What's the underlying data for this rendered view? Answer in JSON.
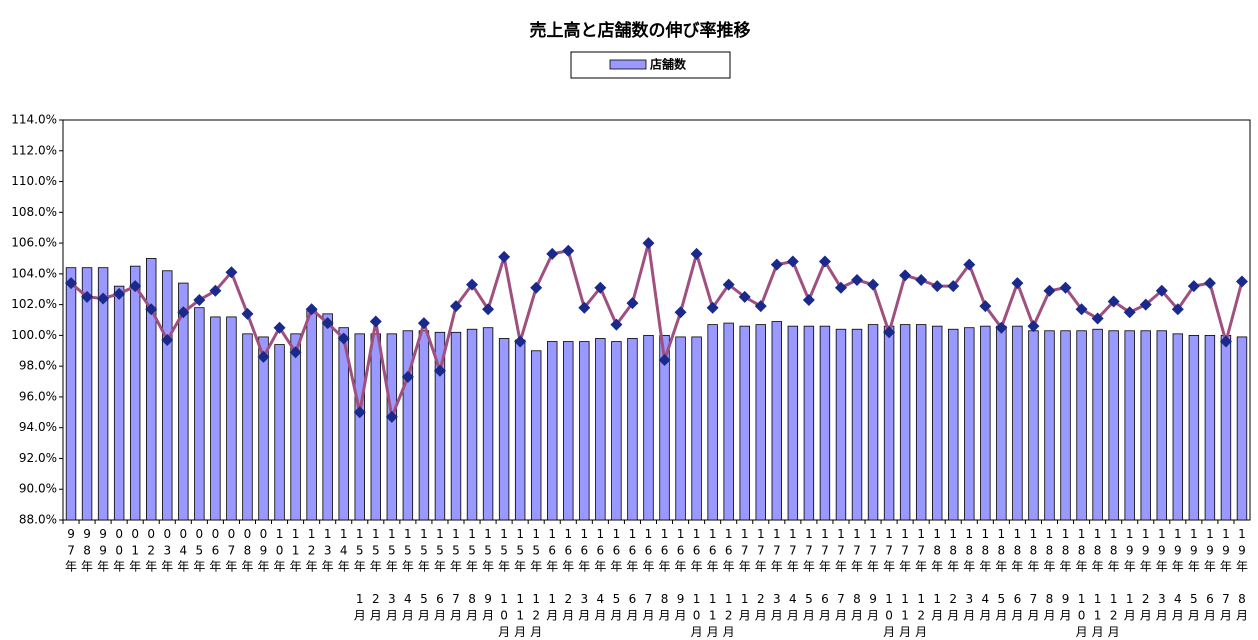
{
  "chart_data": {
    "type": "bar_line",
    "title": "売上高と店舗数の伸び率推移",
    "categories": [
      "97年",
      "98年",
      "99年",
      "00年",
      "01年",
      "02年",
      "03年",
      "04年",
      "05年",
      "06年",
      "07年",
      "08年",
      "09年",
      "10年",
      "11年",
      "12年",
      "13年",
      "14年",
      "15年1月",
      "15年2月",
      "15年3月",
      "15年4月",
      "15年5月",
      "15年6月",
      "15年7月",
      "15年8月",
      "15年9月",
      "15年10月",
      "15年11月",
      "15年12月",
      "16年1月",
      "16年2月",
      "16年3月",
      "16年4月",
      "16年5月",
      "16年6月",
      "16年7月",
      "16年8月",
      "16年9月",
      "16年10月",
      "16年11月",
      "16年12月",
      "17年1月",
      "17年2月",
      "17年3月",
      "17年4月",
      "17年5月",
      "17年6月",
      "17年7月",
      "17年8月",
      "17年9月",
      "17年10月",
      "17年11月",
      "17年12月",
      "18年1月",
      "18年2月",
      "18年3月",
      "18年4月",
      "18年5月",
      "18年6月",
      "18年7月",
      "18年8月",
      "18年9月",
      "18年10月",
      "18年11月",
      "18年12月",
      "19年1月",
      "19年2月",
      "19年3月",
      "19年4月",
      "19年5月",
      "19年6月",
      "19年7月",
      "19年8月"
    ],
    "series": [
      {
        "name": "店舗数",
        "type": "bar",
        "color": "#9999ff",
        "values": [
          104.4,
          104.4,
          104.4,
          103.2,
          104.5,
          105.0,
          104.2,
          103.4,
          101.8,
          101.2,
          101.2,
          100.1,
          99.9,
          99.4,
          100.1,
          101.6,
          101.4,
          100.5,
          100.1,
          100.1,
          100.1,
          100.3,
          100.3,
          100.2,
          100.2,
          100.4,
          100.5,
          99.8,
          99.7,
          99.0,
          99.6,
          99.6,
          99.6,
          99.8,
          99.6,
          99.8,
          100.0,
          100.0,
          99.9,
          99.9,
          100.7,
          100.8,
          100.6,
          100.7,
          100.9,
          100.6,
          100.6,
          100.6,
          100.4,
          100.4,
          100.7,
          100.6,
          100.7,
          100.7,
          100.6,
          100.4,
          100.5,
          100.6,
          100.6,
          100.6,
          100.3,
          100.3,
          100.3,
          100.3,
          100.4,
          100.3,
          100.3,
          100.3,
          100.3,
          100.1,
          100.0,
          100.0,
          100.0,
          99.9
        ]
      },
      {
        "type": "line",
        "color": "#a0507f",
        "marker_color": "#1a2a8c",
        "values": [
          103.4,
          102.5,
          102.4,
          102.7,
          103.2,
          101.7,
          99.7,
          101.5,
          102.3,
          102.9,
          104.1,
          101.4,
          98.6,
          100.5,
          98.9,
          101.7,
          100.8,
          99.8,
          95.0,
          100.9,
          94.7,
          97.3,
          100.8,
          97.7,
          101.9,
          103.3,
          101.7,
          105.1,
          99.6,
          103.1,
          105.3,
          105.5,
          101.8,
          103.1,
          100.7,
          102.1,
          106.0,
          98.4,
          101.5,
          105.3,
          101.8,
          103.3,
          102.5,
          101.9,
          104.6,
          104.8,
          102.3,
          104.8,
          103.1,
          103.6,
          103.3,
          100.2,
          103.9,
          103.6,
          103.2,
          103.2,
          104.6,
          101.9,
          100.5,
          103.4,
          100.6,
          102.9,
          103.1,
          101.7,
          101.1,
          102.2,
          101.5,
          102.0,
          102.9,
          101.7,
          103.2,
          103.4,
          99.6,
          103.5
        ]
      }
    ],
    "ylim": [
      88,
      114
    ],
    "yticks": [
      {
        "value": 88,
        "label": "88.0%"
      },
      {
        "value": 90,
        "label": "90.0%"
      },
      {
        "value": 92,
        "label": "92.0%"
      },
      {
        "value": 94,
        "label": "94.0%"
      },
      {
        "value": 96,
        "label": "96.0%"
      },
      {
        "value": 98,
        "label": "98.0%"
      },
      {
        "value": 100,
        "label": "100.0%"
      },
      {
        "value": 102,
        "label": "102.0%"
      },
      {
        "value": 104,
        "label": "104.0%"
      },
      {
        "value": 106,
        "label": "106.0%"
      },
      {
        "value": 108,
        "label": "108.0%"
      },
      {
        "value": 110,
        "label": "110.0%"
      },
      {
        "value": 112,
        "label": "112.0%"
      },
      {
        "value": 114,
        "label": "114.0%"
      }
    ],
    "grid": false,
    "legend": "top"
  }
}
